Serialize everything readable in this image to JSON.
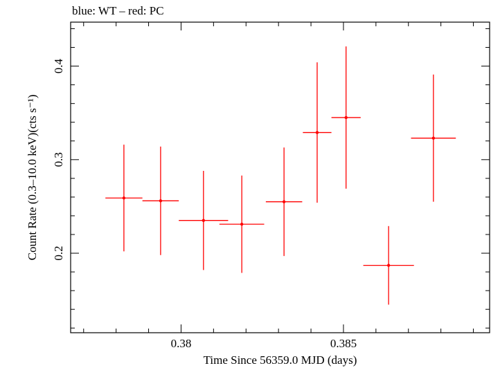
{
  "chart_data": {
    "type": "scatter",
    "title": "blue: WT – red: PC",
    "xlabel": "Time Since 56359.0 MJD (days)",
    "ylabel": "Count Rate (0.3–10.0 keV)(cts s⁻¹)",
    "xlim": [
      0.3766,
      0.3895
    ],
    "ylim": [
      0.115,
      0.447
    ],
    "x_ticks": [
      0.38,
      0.385
    ],
    "x_tick_labels": [
      "0.38",
      "0.385"
    ],
    "y_ticks": [
      0.2,
      0.3,
      0.4
    ],
    "y_tick_labels": [
      "0.2",
      "0.3",
      "0.4"
    ],
    "grid": false,
    "series": [
      {
        "color": "#ff0000",
        "points": [
          {
            "x": 0.37824,
            "y": 0.259,
            "xerr": 0.00057,
            "yerr_lo": 0.057,
            "yerr_hi": 0.057
          },
          {
            "x": 0.37937,
            "y": 0.256,
            "xerr": 0.00056,
            "yerr_lo": 0.058,
            "yerr_hi": 0.058
          },
          {
            "x": 0.38069,
            "y": 0.235,
            "xerr": 0.00076,
            "yerr_lo": 0.053,
            "yerr_hi": 0.053
          },
          {
            "x": 0.38187,
            "y": 0.231,
            "xerr": 0.00069,
            "yerr_lo": 0.052,
            "yerr_hi": 0.052
          },
          {
            "x": 0.38317,
            "y": 0.255,
            "xerr": 0.00056,
            "yerr_lo": 0.058,
            "yerr_hi": 0.058
          },
          {
            "x": 0.38419,
            "y": 0.329,
            "xerr": 0.00044,
            "yerr_lo": 0.075,
            "yerr_hi": 0.075
          },
          {
            "x": 0.38508,
            "y": 0.345,
            "xerr": 0.00045,
            "yerr_lo": 0.076,
            "yerr_hi": 0.076
          },
          {
            "x": 0.38639,
            "y": 0.187,
            "xerr": 0.00078,
            "yerr_lo": 0.042,
            "yerr_hi": 0.042
          },
          {
            "x": 0.38777,
            "y": 0.323,
            "xerr": 0.00069,
            "yerr_lo": 0.068,
            "yerr_hi": 0.068
          }
        ]
      }
    ]
  }
}
